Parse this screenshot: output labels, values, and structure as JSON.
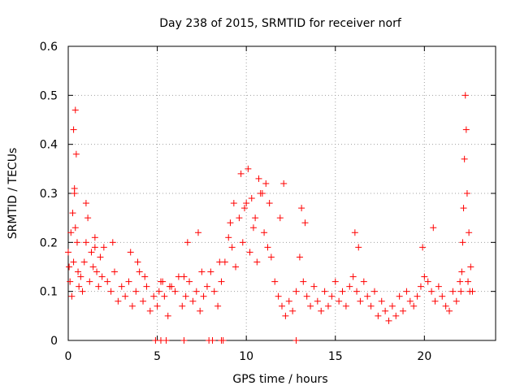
{
  "chart_data": {
    "type": "scatter",
    "title": "Day 238 of 2015, SRMTID for receiver norf",
    "xlabel": "GPS time / hours",
    "ylabel": "SRMTID / TECUs",
    "xlim": [
      0,
      24
    ],
    "ylim": [
      0,
      0.6
    ],
    "xticks": [
      0,
      5,
      10,
      15,
      20
    ],
    "xtick_labels": [
      "0",
      "5",
      "10",
      "15",
      "20"
    ],
    "yticks": [
      0,
      0.1,
      0.2,
      0.3,
      0.4,
      0.5,
      0.6
    ],
    "ytick_labels": [
      "0",
      "0.1",
      "0.2",
      "0.3",
      "0.4",
      "0.5",
      "0.6"
    ],
    "grid": true,
    "marker": "+",
    "color": "#ff0000",
    "series": [
      {
        "name": "SRMTID",
        "x": [
          0.0,
          0.05,
          0.1,
          0.15,
          0.2,
          0.25,
          0.3,
          0.35,
          0.4,
          0.45,
          0.5,
          0.55,
          0.6,
          0.7,
          0.8,
          0.9,
          1.0,
          1.1,
          1.2,
          1.3,
          1.4,
          1.5,
          1.6,
          1.7,
          1.8,
          1.9,
          2.0,
          2.2,
          2.4,
          2.6,
          2.8,
          3.0,
          3.2,
          3.4,
          3.6,
          3.8,
          4.0,
          4.2,
          4.4,
          4.6,
          4.8,
          5.0,
          5.2,
          5.4,
          5.6,
          5.8,
          6.0,
          6.2,
          6.4,
          6.6,
          6.8,
          7.0,
          7.2,
          7.4,
          7.6,
          7.8,
          8.0,
          8.2,
          8.4,
          8.6,
          8.8,
          9.0,
          9.2,
          9.4,
          9.6,
          9.8,
          10.0,
          10.2,
          10.4,
          10.6,
          10.8,
          11.0,
          11.2,
          11.4,
          11.6,
          11.8,
          12.0,
          12.2,
          12.4,
          12.6,
          12.8,
          13.0,
          13.2,
          13.4,
          13.6,
          13.8,
          14.0,
          14.2,
          14.4,
          14.6,
          14.8,
          15.0,
          15.2,
          15.4,
          15.6,
          15.8,
          16.0,
          16.2,
          16.4,
          16.6,
          16.8,
          17.0,
          17.2,
          17.4,
          17.6,
          17.8,
          18.0,
          18.2,
          18.4,
          18.6,
          18.8,
          19.0,
          19.2,
          19.4,
          19.6,
          19.8,
          20.0,
          20.2,
          20.4,
          20.6,
          20.8,
          21.0,
          21.2,
          21.4,
          21.6,
          21.8,
          22.0,
          22.1,
          22.15,
          22.2,
          22.25,
          22.3,
          22.35,
          22.4,
          22.5,
          22.6,
          22.7,
          0.3,
          0.35,
          0.4,
          1.0,
          1.5,
          2.5,
          3.5,
          3.9,
          4.3,
          5.1,
          5.3,
          5.7,
          6.5,
          6.7,
          7.3,
          7.5,
          8.5,
          9.1,
          9.3,
          9.7,
          9.9,
          10.1,
          10.3,
          10.5,
          10.7,
          10.9,
          11.1,
          11.3,
          11.9,
          12.1,
          13.1,
          13.3,
          16.1,
          16.3,
          19.9,
          20.5,
          22.05,
          22.45,
          22.55,
          4.9,
          5.2,
          5.5,
          6.5,
          7.9,
          8.1,
          8.6,
          8.7,
          12.8
        ],
        "y": [
          0.18,
          0.15,
          0.12,
          0.22,
          0.09,
          0.26,
          0.16,
          0.3,
          0.47,
          0.38,
          0.2,
          0.14,
          0.11,
          0.13,
          0.1,
          0.16,
          0.2,
          0.25,
          0.12,
          0.18,
          0.15,
          0.21,
          0.14,
          0.11,
          0.17,
          0.13,
          0.19,
          0.12,
          0.1,
          0.14,
          0.08,
          0.11,
          0.09,
          0.12,
          0.07,
          0.1,
          0.14,
          0.08,
          0.11,
          0.06,
          0.09,
          0.07,
          0.12,
          0.09,
          0.05,
          0.11,
          0.1,
          0.13,
          0.07,
          0.09,
          0.12,
          0.08,
          0.1,
          0.06,
          0.09,
          0.11,
          0.14,
          0.1,
          0.07,
          0.12,
          0.16,
          0.21,
          0.19,
          0.15,
          0.25,
          0.2,
          0.28,
          0.18,
          0.23,
          0.16,
          0.3,
          0.22,
          0.19,
          0.17,
          0.12,
          0.09,
          0.07,
          0.05,
          0.08,
          0.06,
          0.1,
          0.17,
          0.12,
          0.09,
          0.07,
          0.11,
          0.08,
          0.06,
          0.1,
          0.07,
          0.09,
          0.12,
          0.08,
          0.1,
          0.07,
          0.11,
          0.13,
          0.1,
          0.08,
          0.12,
          0.09,
          0.07,
          0.1,
          0.05,
          0.08,
          0.06,
          0.04,
          0.07,
          0.05,
          0.09,
          0.06,
          0.1,
          0.08,
          0.07,
          0.09,
          0.11,
          0.13,
          0.12,
          0.1,
          0.08,
          0.11,
          0.09,
          0.07,
          0.06,
          0.1,
          0.08,
          0.12,
          0.14,
          0.2,
          0.27,
          0.37,
          0.5,
          0.43,
          0.3,
          0.22,
          0.15,
          0.1,
          0.43,
          0.31,
          0.23,
          0.28,
          0.19,
          0.2,
          0.18,
          0.16,
          0.13,
          0.1,
          0.12,
          0.11,
          0.13,
          0.2,
          0.22,
          0.14,
          0.16,
          0.24,
          0.28,
          0.34,
          0.27,
          0.35,
          0.29,
          0.25,
          0.33,
          0.3,
          0.32,
          0.28,
          0.25,
          0.32,
          0.27,
          0.24,
          0.22,
          0.19,
          0.19,
          0.23,
          0.1,
          0.12,
          0.1,
          0.0,
          0.0,
          0.0,
          0.0,
          0.0,
          0.0,
          0.0,
          0.0,
          0.0
        ]
      }
    ]
  }
}
